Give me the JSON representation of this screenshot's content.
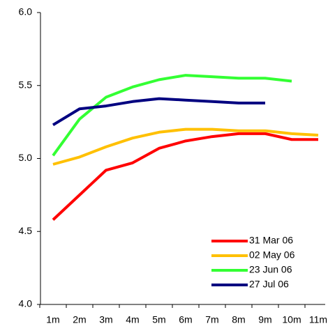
{
  "chart_data": {
    "type": "line",
    "categories": [
      "1m",
      "2m",
      "3m",
      "4m",
      "5m",
      "6m",
      "7m",
      "8m",
      "9m",
      "10m",
      "11m"
    ],
    "series": [
      {
        "name": "31 Mar 06",
        "color": "#ff0000",
        "values": [
          4.58,
          4.75,
          4.92,
          4.97,
          5.07,
          5.12,
          5.15,
          5.17,
          5.17,
          5.13,
          5.13
        ]
      },
      {
        "name": "02 May 06",
        "color": "#ffc000",
        "values": [
          4.96,
          5.01,
          5.08,
          5.14,
          5.18,
          5.2,
          5.2,
          5.19,
          5.19,
          5.17,
          5.16
        ]
      },
      {
        "name": "23 Jun 06",
        "color": "#33ff33",
        "values": [
          5.02,
          5.27,
          5.42,
          5.49,
          5.54,
          5.57,
          5.56,
          5.55,
          5.55,
          5.53,
          null
        ]
      },
      {
        "name": "27 Jul 06",
        "color": "#000080",
        "values": [
          5.23,
          5.34,
          5.36,
          5.39,
          5.41,
          5.4,
          5.39,
          5.38,
          5.38,
          null,
          null
        ]
      }
    ],
    "ylim": [
      4,
      6
    ],
    "yticks": [
      {
        "value": 4,
        "label": "4.0"
      },
      4.5,
      {
        "value": 5,
        "label": "5.0"
      },
      5.5,
      {
        "value": 6,
        "label": "6.0"
      }
    ],
    "grid": false,
    "legend": "lower-right"
  }
}
